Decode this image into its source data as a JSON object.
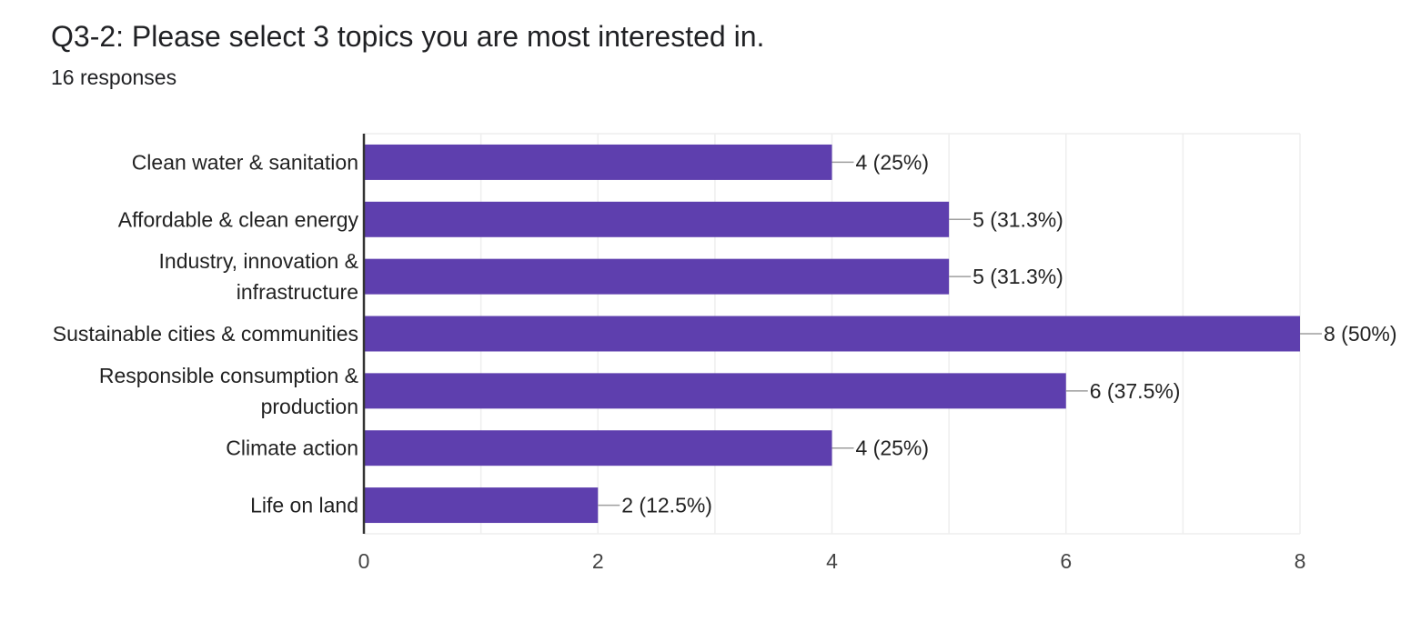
{
  "question": {
    "title": "Q3-2: Please select 3 topics you are most interested in.",
    "responses": "16 responses"
  },
  "chart_data": {
    "type": "bar",
    "orientation": "horizontal",
    "categories": [
      [
        "Clean water & sanitation"
      ],
      [
        "Affordable & clean energy"
      ],
      [
        "Industry, innovation &",
        "infrastructure"
      ],
      [
        "Sustainable cities & communities"
      ],
      [
        "Responsible consumption &",
        "production"
      ],
      [
        "Climate action"
      ],
      [
        "Life on land"
      ]
    ],
    "values": [
      4,
      5,
      5,
      8,
      6,
      4,
      2
    ],
    "data_labels": [
      "4 (25%)",
      "5 (31.3%)",
      "5 (31.3%)",
      "8 (50%)",
      "6 (37.5%)",
      "4 (25%)",
      "2 (12.5%)"
    ],
    "xlim": [
      0,
      8
    ],
    "xticks": [
      0,
      2,
      4,
      6,
      8
    ],
    "grid": true,
    "bar_color": "#5e3fae",
    "grid_color": "#eeeeee",
    "axis_color": "#333333"
  }
}
